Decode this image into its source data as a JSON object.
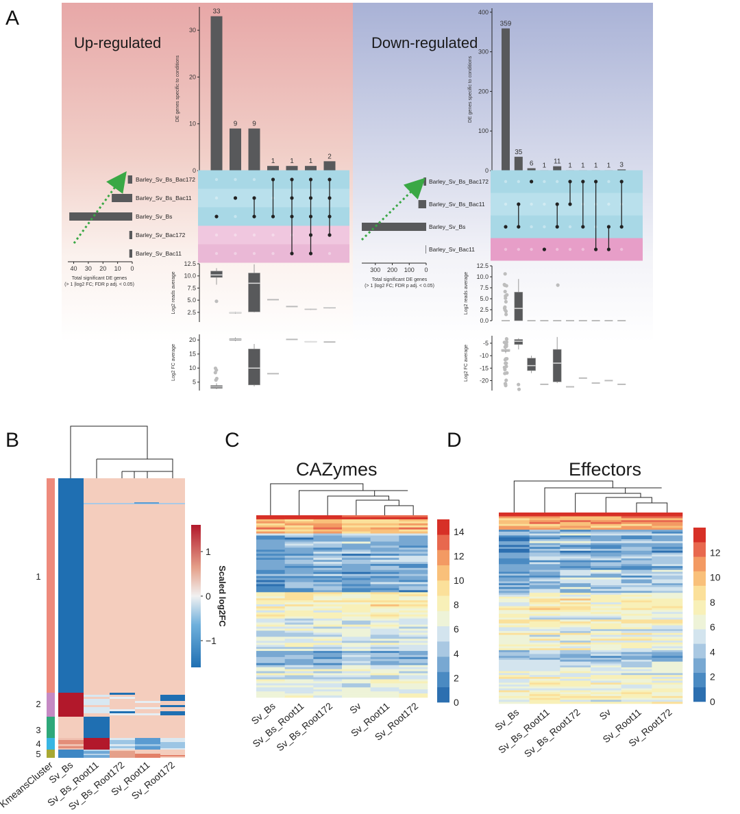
{
  "panels": {
    "a": "A",
    "b": "B",
    "c": "C",
    "d": "D"
  },
  "chart_data": [
    {
      "type": "bar",
      "id": "upset-up",
      "title": "Up-regulated",
      "ylabel": "DE genes specific to conditions",
      "ylim": [
        0,
        35
      ],
      "yticks": [
        0,
        10,
        20,
        30
      ],
      "values": [
        33,
        9,
        9,
        1,
        1,
        1,
        2
      ],
      "sets": [
        "Barley_Sv_Bs_Bac172",
        "Barley_Sv_Bs_Bac11",
        "Barley_Sv_Bs",
        "Barley_Sv_Bac172",
        "Barley_Sv_Bac11"
      ],
      "set_sizes": [
        3,
        14,
        43,
        2,
        2
      ],
      "set_size_xticks": [
        "40",
        "30",
        "20",
        "10",
        "0"
      ],
      "set_size_xlabel": "Total significant DE genes",
      "set_size_xlabel2": "(> 1 |log2 FC; FDR p adj. < 0.05)",
      "membership": [
        [
          2
        ],
        [
          1
        ],
        [
          1,
          2
        ],
        [
          0,
          2
        ],
        [
          0,
          1,
          2,
          4
        ],
        [
          0,
          1,
          2,
          3,
          4
        ],
        [
          0,
          1,
          2,
          3
        ]
      ],
      "reads_ylabel": "Log2 reads average",
      "reads_yticks": [
        "2.5",
        "5.0",
        "7.5",
        "10.0",
        "12.5"
      ],
      "reads_box": [
        [
          8.2,
          9.7,
          10.2,
          11.0,
          11.6
        ],
        [
          2.2,
          2.3,
          2.4,
          2.5,
          2.6
        ],
        [
          2.5,
          2.6,
          8.5,
          10.6,
          12.4
        ],
        [
          5.0,
          5.0,
          5.1,
          5.1,
          5.1
        ],
        [
          3.6,
          3.6,
          3.7,
          3.7,
          3.7
        ],
        [
          3.0,
          3.1,
          3.2,
          3.2,
          3.3
        ],
        [
          3.3,
          3.4,
          3.5,
          3.5,
          3.6
        ]
      ],
      "fc_ylabel": "Log2 FC average",
      "fc_yticks": [
        "5",
        "10",
        "15",
        "20"
      ],
      "fc_box": [
        [
          2.5,
          2.8,
          3.3,
          3.8,
          4.6
        ],
        [
          19.6,
          19.9,
          20.2,
          20.5,
          20.9
        ],
        [
          3.5,
          4.0,
          10.0,
          16.8,
          18.6
        ],
        [
          7.8,
          7.9,
          8.0,
          8.1,
          8.2
        ],
        [
          20.0,
          20.1,
          20.2,
          20.3,
          20.4
        ],
        [
          19.2,
          19.3,
          19.4,
          19.5,
          19.6
        ],
        [
          19.1,
          19.2,
          19.3,
          19.4,
          19.5
        ]
      ]
    },
    {
      "type": "bar",
      "id": "upset-down",
      "title": "Down-regulated",
      "ylabel": "DE genes specific to conditions",
      "ylim": [
        0,
        410
      ],
      "yticks": [
        0,
        100,
        200,
        300,
        400
      ],
      "values": [
        359,
        35,
        6,
        1,
        11,
        1,
        1,
        1,
        1,
        3
      ],
      "sets": [
        "Barley_Sv_Bs_Bac172",
        "Barley_Sv_Bs_Bac11",
        "Barley_Sv_Bs",
        "Barley_Sv_Bac11"
      ],
      "set_sizes": [
        15,
        46,
        380,
        3
      ],
      "set_size_xticks": [
        "300",
        "200",
        "100",
        "0"
      ],
      "set_size_xlabel": "Total significant DE genes",
      "set_size_xlabel2": "(> 1 |log2 FC; FDR p adj. < 0.05)",
      "membership": [
        [
          2
        ],
        [
          1,
          2
        ],
        [
          0
        ],
        [
          3
        ],
        [
          1,
          2
        ],
        [
          0,
          1
        ],
        [
          0,
          2
        ],
        [
          0,
          3
        ],
        [
          2,
          3
        ],
        [
          0,
          2
        ]
      ],
      "reads_ylabel": "Log2 reads average",
      "reads_yticks": [
        "0.0",
        "2.5",
        "5.0",
        "7.5",
        "10.0",
        "12.5"
      ],
      "reads_box": [
        [
          0,
          0,
          0,
          0,
          0
        ],
        [
          0,
          0,
          2.8,
          6.5,
          9.5
        ],
        [
          0,
          0,
          0,
          0,
          0
        ],
        [
          0,
          0,
          0,
          0,
          0
        ],
        [
          0,
          0,
          0,
          0,
          0
        ],
        [
          0,
          0,
          0,
          0,
          0
        ],
        [
          0,
          0,
          0,
          0,
          0
        ],
        [
          0,
          0,
          0,
          0,
          0
        ],
        [
          0,
          0,
          0,
          0,
          0
        ],
        [
          0,
          0,
          0,
          0,
          0
        ]
      ],
      "fc_ylabel": "Log2 FC average",
      "fc_yticks": [
        "-5",
        "-10",
        "-15",
        "-20"
      ],
      "fc_box": [
        [
          -9,
          -8.2,
          -7.8,
          -7.5,
          -7
        ],
        [
          -7.5,
          -5.5,
          -4.2,
          -3.5,
          -3
        ],
        [
          -17,
          -16,
          -14,
          -11,
          -10
        ],
        [
          -21.5,
          -21.5,
          -21.5,
          -21.5,
          -21.5
        ],
        [
          -21,
          -20.5,
          -13,
          -7.5,
          -2.5
        ],
        [
          -22.5,
          -22.5,
          -22.5,
          -22.5,
          -22.5
        ],
        [
          -19,
          -19,
          -19,
          -19,
          -19
        ],
        [
          -21,
          -21,
          -21,
          -21,
          -21
        ],
        [
          -20,
          -20,
          -20,
          -20,
          -20
        ],
        [
          -21.5,
          -21.5,
          -21.5,
          -21.5,
          -21.5
        ]
      ]
    },
    {
      "type": "heatmap",
      "id": "kmeans-heatmap",
      "columns": [
        "KmeansCluster",
        "Sv_Bs",
        "Sv_Bs_Root11",
        "Sv_Bs_Root172",
        "Sv_Root11",
        "Sv_Root172"
      ],
      "clusters": [
        "1",
        "2",
        "3",
        "4",
        "5"
      ],
      "cluster_colors": [
        "#ee8a7c",
        "#c58ac4",
        "#2ea87a",
        "#38b6e3",
        "#a8a832"
      ],
      "legend_title": "Scaled log2FC",
      "legend_ticks": [
        "1",
        "0",
        "−1"
      ],
      "legend_range": [
        -1.6,
        1.6
      ]
    },
    {
      "type": "heatmap",
      "id": "cazymes-heatmap",
      "title": "CAZymes",
      "columns": [
        "Sv_Bs",
        "Sv_Bs_Root11",
        "Sv_Bs_Root172",
        "Sv",
        "Sv_Root11",
        "Sv_Root172"
      ],
      "legend_ticks": [
        "14",
        "12",
        "10",
        "8",
        "6",
        "4",
        "2",
        "0"
      ],
      "legend_range": [
        0,
        15
      ]
    },
    {
      "type": "heatmap",
      "id": "effectors-heatmap",
      "title": "Effectors",
      "columns": [
        "Sv_Bs",
        "Sv_Bs_Root11",
        "Sv_Bs_Root172",
        "Sv",
        "Sv_Root11",
        "Sv_Root172"
      ],
      "legend_ticks": [
        "12",
        "10",
        "8",
        "6",
        "4",
        "2",
        "0"
      ],
      "legend_range": [
        0,
        14
      ]
    }
  ]
}
